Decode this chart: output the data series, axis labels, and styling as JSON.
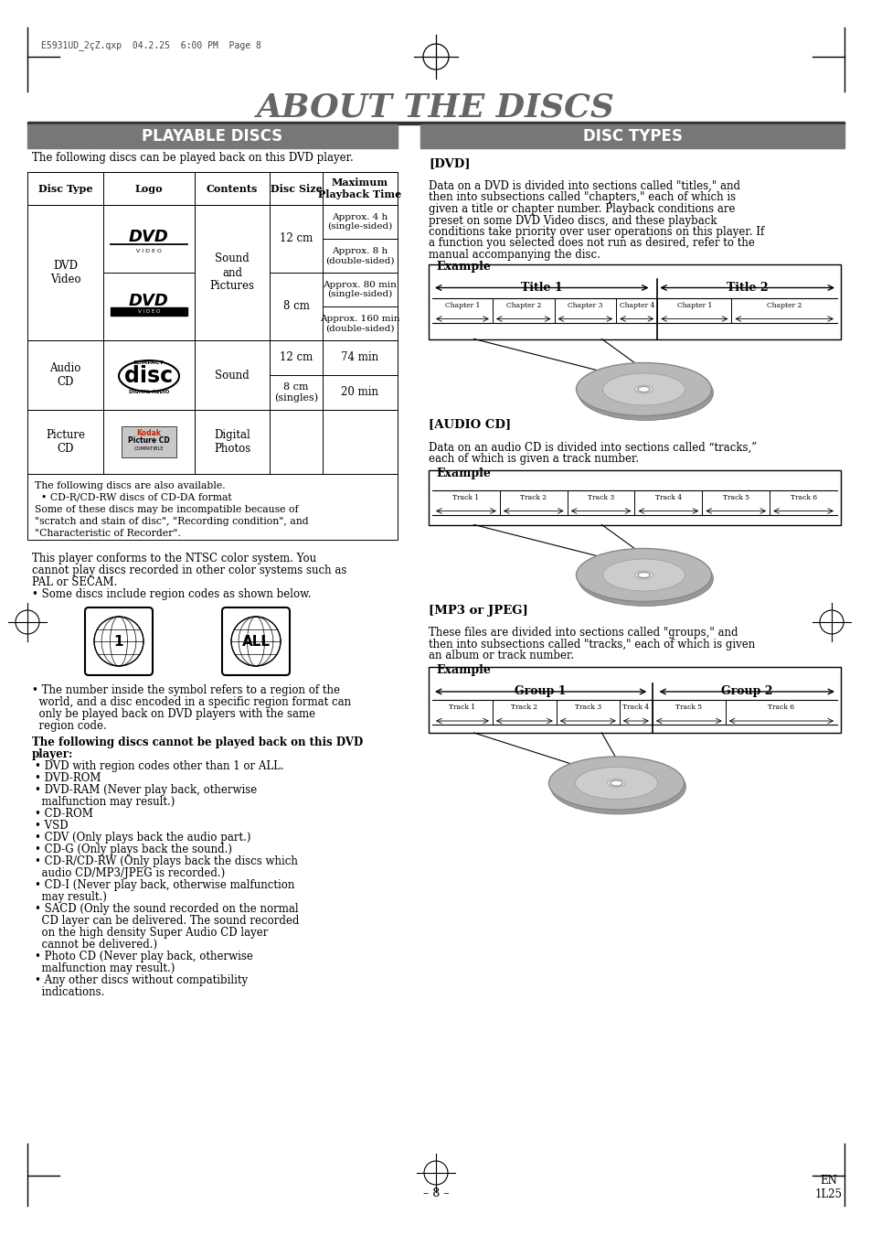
{
  "title": "ABOUT THE DISCS",
  "section_left": "PLAYABLE DISCS",
  "section_right": "DISC TYPES",
  "bg_color": "#ffffff",
  "header_bg": "#7a7a7a",
  "page_header_text": "E5931UD_2çZ.qxp  04.2.25  6:00 PM  Page 8",
  "intro_text": "The following discs can be played back on this DVD player.",
  "table_headers": [
    "Disc Type",
    "Logo",
    "Contents",
    "Disc Size",
    "Maximum\nPlayback Time"
  ],
  "dvd_12cm_rows": [
    "Approx. 4 h\n(single-sided)",
    "Approx. 8 h\n(double-sided)"
  ],
  "dvd_8cm_rows": [
    "Approx. 80 min\n(single-sided)",
    "Approx. 160 min\n(double-sided)"
  ],
  "audio_12cm": "74 min",
  "audio_8cm": "20 min",
  "note_text_lines": [
    "The following discs are also available.",
    "  • CD-R/CD-RW discs of CD-DA format",
    "Some of these discs may be incompatible because of",
    "\"scratch and stain of disc\", \"Recording condition\", and",
    "\"Characteristic of Recorder\"."
  ],
  "ntsc_text_lines": [
    "This player conforms to the NTSC color system. You",
    "cannot play discs recorded in other color systems such as",
    "PAL or SECAM.",
    "• Some discs include region codes as shown below."
  ],
  "region_bullet_lines": [
    "• The number inside the symbol refers to a region of the",
    "  world, and a disc encoded in a specific region format can",
    "  only be played back on DVD players with the same",
    "  region code."
  ],
  "cannot_play_header_lines": [
    "The following discs cannot be played back on this DVD",
    "player:"
  ],
  "cannot_play_list": [
    "• DVD with region codes other than 1 or ALL.",
    "• DVD-ROM",
    "• DVD-RAM (Never play back, otherwise",
    "  malfunction may result.)",
    "• CD-ROM",
    "• VSD",
    "• CDV (Only plays back the audio part.)",
    "• CD-G (Only plays back the sound.)",
    "• CD-R/CD-RW (Only plays back the discs which",
    "  audio CD/MP3/JPEG is recorded.)",
    "• CD-I (Never play back, otherwise malfunction",
    "  may result.)",
    "• SACD (Only the sound recorded on the normal",
    "  CD layer can be delivered. The sound recorded",
    "  on the high density Super Audio CD layer",
    "  cannot be delivered.)",
    "• Photo CD (Never play back, otherwise",
    "  malfunction may result.)",
    "• Any other discs without compatibility",
    "  indications."
  ],
  "dvd_section_header": "[DVD]",
  "dvd_section_text_lines": [
    "Data on a DVD is divided into sections called \"titles,\" and",
    "then into subsections called \"chapters,\" each of which is",
    "given a title or chapter number. Playback conditions are",
    "preset on some DVD Video discs, and these playback",
    "conditions take priority over user operations on this player. If",
    "a function you selected does not run as desired, refer to the",
    "manual accompanying the disc."
  ],
  "audio_section_header": "[AUDIO CD]",
  "audio_section_text_lines": [
    "Data on an audio CD is divided into sections called “tracks,”",
    "each of which is given a track number."
  ],
  "mp3_section_header": "[MP3 or JPEG]",
  "mp3_section_text_lines": [
    "These files are divided into sections called \"groups,\" and",
    "then into subsections called \"tracks,\" each of which is given",
    "an album or track number."
  ],
  "page_num": "– 8 –",
  "page_code": "EN\n1L25"
}
